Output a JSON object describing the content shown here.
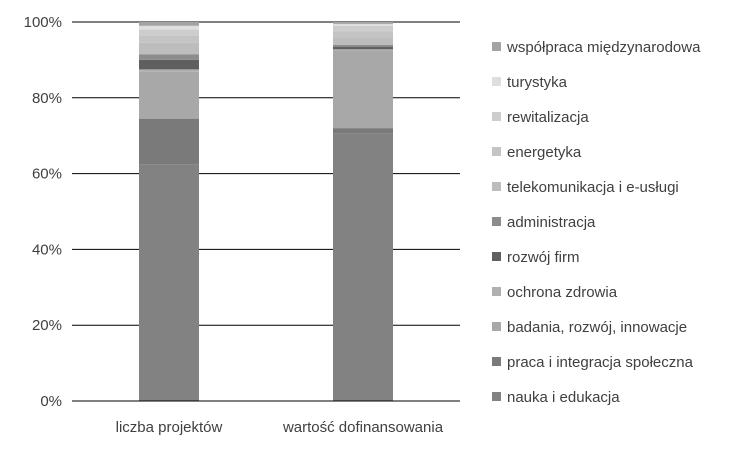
{
  "chart_data": {
    "type": "bar",
    "stacked": true,
    "percent": true,
    "categories": [
      "liczba projektów",
      "wartość dofinansowania"
    ],
    "ylim": [
      0,
      100
    ],
    "yticks": [
      "0%",
      "20%",
      "40%",
      "60%",
      "80%",
      "100%"
    ],
    "grid": true,
    "legend_position": "right",
    "series": [
      {
        "name": "nauka i edukacja",
        "values": [
          62.5,
          70.5
        ],
        "color": "#828282"
      },
      {
        "name": "praca i integracja społeczna",
        "values": [
          12.0,
          1.5
        ],
        "color": "#7a7a7a"
      },
      {
        "name": "badania, rozwój, innowacje",
        "values": [
          12.5,
          20.5
        ],
        "color": "#a8a8a8"
      },
      {
        "name": "ochrona zdrowia",
        "values": [
          0.5,
          0.3
        ],
        "color": "#b0b0b0"
      },
      {
        "name": "rozwój firm",
        "values": [
          2.5,
          0.6
        ],
        "color": "#5f5f5f"
      },
      {
        "name": "administracja",
        "values": [
          1.5,
          0.6
        ],
        "color": "#8c8c8c"
      },
      {
        "name": "telekomunikacja i e-usługi",
        "values": [
          3.0,
          2.0
        ],
        "color": "#bdbdbd"
      },
      {
        "name": "energetyka",
        "values": [
          2.0,
          1.5
        ],
        "color": "#c4c4c4"
      },
      {
        "name": "rewitalizacja",
        "values": [
          1.5,
          1.5
        ],
        "color": "#cdcdcd"
      },
      {
        "name": "turystyka",
        "values": [
          1.0,
          0.5
        ],
        "color": "#dedede"
      },
      {
        "name": "współpraca międzynarodowa",
        "values": [
          1.0,
          0.5
        ],
        "color": "#a3a3a3"
      }
    ]
  }
}
